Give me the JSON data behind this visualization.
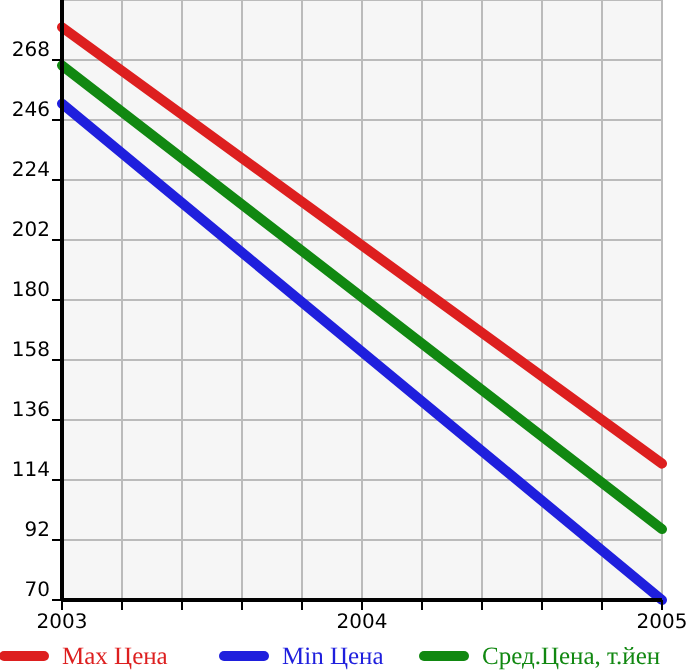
{
  "chart_data": {
    "type": "line",
    "x": [
      2003,
      2005
    ],
    "series": [
      {
        "name": "Max Цена",
        "color": "#dd1f1f",
        "values": [
          280,
          120
        ]
      },
      {
        "name": "Min Цена",
        "color": "#1f1fdd",
        "values": [
          252,
          70
        ]
      },
      {
        "name": "Сред.Цена, т.йен",
        "color": "#118811",
        "values": [
          266,
          96
        ]
      }
    ],
    "xlim": [
      2003,
      2005
    ],
    "xticks": [
      2003,
      {
        "value": 2003.2,
        "label": null
      },
      {
        "value": 2003.4,
        "label": null
      },
      {
        "value": 2003.6,
        "label": null
      },
      {
        "value": 2003.8,
        "label": null
      },
      2004,
      {
        "value": 2004.2,
        "label": null
      },
      {
        "value": 2004.4,
        "label": null
      },
      {
        "value": 2004.6,
        "label": null
      },
      {
        "value": 2004.8,
        "label": null
      },
      2005
    ],
    "ylim": [
      70,
      290
    ],
    "yticks": [
      70,
      92,
      114,
      136,
      158,
      180,
      202,
      224,
      246,
      268
    ],
    "grid": true,
    "legend": "bottom",
    "marker": "none",
    "line_style": "solid"
  }
}
